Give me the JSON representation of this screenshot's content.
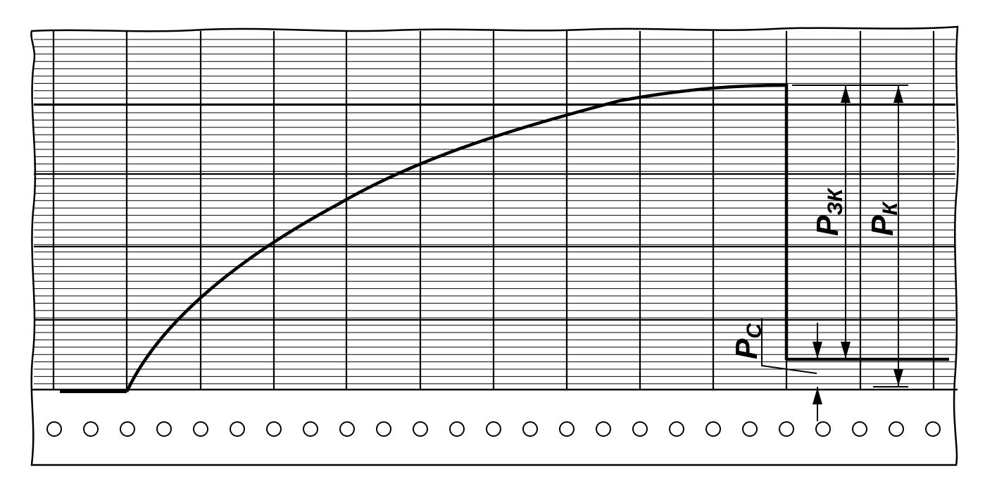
{
  "labels": {
    "pc": {
      "main": "P",
      "sub": "C"
    },
    "pzk": {
      "main": "P",
      "sub": "ЗК"
    },
    "pk": {
      "main": "P",
      "sub": "К"
    }
  },
  "colors": {
    "ink": "#000000",
    "paper": "#ffffff"
  },
  "icons": [
    "arrow-up-icon",
    "arrow-down-icon",
    "sprocket-hole"
  ]
}
